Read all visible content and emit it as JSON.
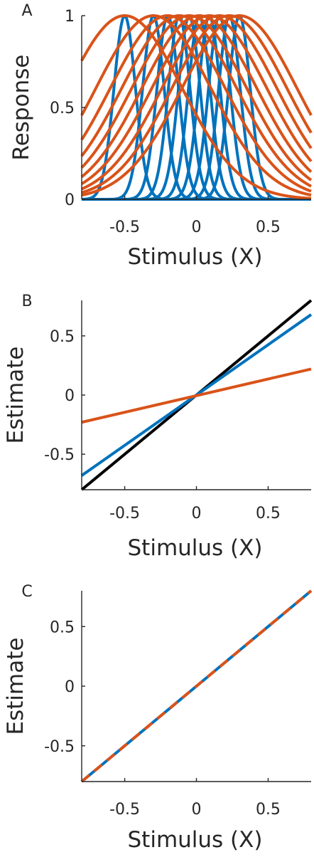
{
  "colors": {
    "blue": "#0072BD",
    "orange": "#D95319",
    "black": "#000000"
  },
  "chart_data": [
    {
      "panel": "A",
      "type": "line",
      "title": "",
      "xlabel": "Stimulus (X)",
      "ylabel": "Response",
      "xlim": [
        -0.8,
        0.8
      ],
      "ylim": [
        0,
        1
      ],
      "xticks": [
        -0.5,
        0,
        0.5
      ],
      "xtick_labels": [
        "-0.5",
        "0",
        "0.5"
      ],
      "yticks": [
        0,
        0.5,
        1
      ],
      "ytick_labels": [
        "0",
        "0.5",
        "1"
      ],
      "grid": false,
      "legend": "none",
      "curve_family": "gaussian",
      "series": [
        {
          "color": "#0072BD",
          "centers": [
            -0.5,
            -0.3,
            -0.2,
            -0.12,
            -0.05,
            0.02,
            0.09,
            0.16,
            0.23,
            0.3
          ],
          "width": 0.075
        },
        {
          "color": "#D95319",
          "centers": [
            -0.5,
            -0.3,
            -0.2,
            -0.12,
            -0.05,
            0.02,
            0.09,
            0.16,
            0.23,
            0.3
          ],
          "width": 0.4
        }
      ]
    },
    {
      "panel": "B",
      "type": "line",
      "title": "",
      "xlabel": "Stimulus (X)",
      "ylabel": "Estimate",
      "xlim": [
        -0.8,
        0.8
      ],
      "ylim": [
        -0.8,
        0.8
      ],
      "xticks": [
        -0.5,
        0,
        0.5
      ],
      "xtick_labels": [
        "-0.5",
        "0",
        "0.5"
      ],
      "yticks": [
        -0.5,
        0,
        0.5
      ],
      "ytick_labels": [
        "-0.5",
        "0",
        "0.5"
      ],
      "grid": false,
      "legend": "none",
      "series": [
        {
          "color": "#000000",
          "x": [
            -0.8,
            0.8
          ],
          "y": [
            -0.8,
            0.8
          ],
          "dash": false
        },
        {
          "color": "#0072BD",
          "x": [
            -0.8,
            0.8
          ],
          "y": [
            -0.68,
            0.68
          ],
          "dash": false
        },
        {
          "color": "#D95319",
          "x": [
            -0.8,
            0.8
          ],
          "y": [
            -0.23,
            0.22
          ],
          "dash": false
        }
      ]
    },
    {
      "panel": "C",
      "type": "line",
      "title": "",
      "xlabel": "Stimulus (X)",
      "ylabel": "Estimate",
      "xlim": [
        -0.8,
        0.8
      ],
      "ylim": [
        -0.8,
        0.8
      ],
      "xticks": [
        -0.5,
        0,
        0.5
      ],
      "xtick_labels": [
        "-0.5",
        "0",
        "0.5"
      ],
      "yticks": [
        -0.5,
        0,
        0.5
      ],
      "ytick_labels": [
        "-0.5",
        "0",
        "0.5"
      ],
      "grid": false,
      "legend": "none",
      "series": [
        {
          "color": "#0072BD",
          "x": [
            -0.8,
            0.8
          ],
          "y": [
            -0.8,
            0.8
          ],
          "dash": false
        },
        {
          "color": "#D95319",
          "x": [
            -0.8,
            0.8
          ],
          "y": [
            -0.8,
            0.8
          ],
          "dash": true
        }
      ]
    }
  ]
}
